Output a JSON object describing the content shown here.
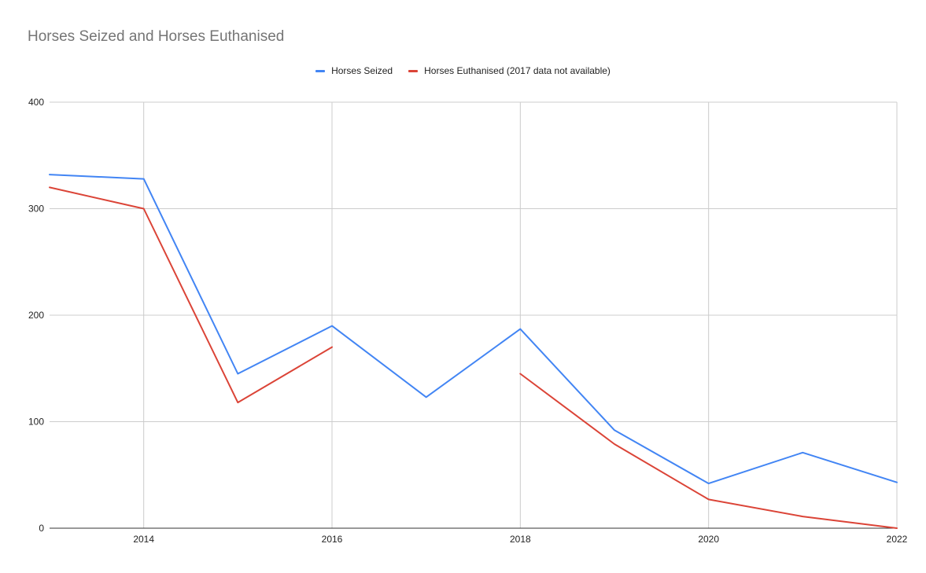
{
  "chart_data": {
    "type": "line",
    "title": "Horses Seized and Horses Euthanised",
    "x": [
      2013,
      2014,
      2015,
      2016,
      2017,
      2018,
      2019,
      2020,
      2021,
      2022
    ],
    "xlim": [
      2013,
      2022
    ],
    "xticks": [
      "2014",
      "2016",
      "2018",
      "2020",
      "2022"
    ],
    "ylim": [
      0,
      400
    ],
    "yticks": [
      "0",
      "100",
      "200",
      "300",
      "400"
    ],
    "grid": true,
    "legend_position": "top",
    "series": [
      {
        "name": "Horses Seized",
        "color": "#4285f4",
        "values": [
          332,
          328,
          145,
          190,
          123,
          187,
          92,
          42,
          71,
          43
        ]
      },
      {
        "name": "Horses Euthanised (2017 data not available)",
        "color": "#db4437",
        "values": [
          320,
          300,
          118,
          170,
          null,
          145,
          79,
          27,
          11,
          0
        ]
      }
    ]
  }
}
